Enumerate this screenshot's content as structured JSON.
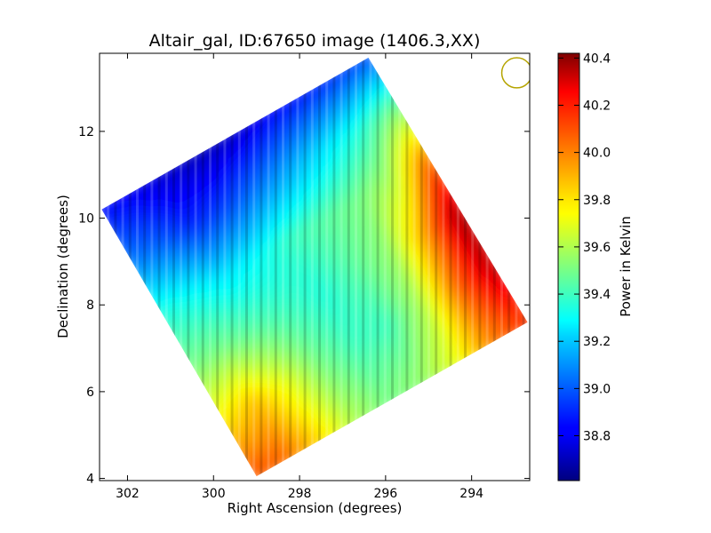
{
  "chart_data": {
    "type": "heatmap",
    "title": "Altair_gal, ID:67650 image (1406.3,XX)",
    "xlabel": "Right Ascension (degrees)",
    "ylabel": "Declination (degrees)",
    "colorbar_label": "Power in Kelvin",
    "xlim": [
      302.65,
      292.65
    ],
    "ylim": [
      3.95,
      13.8
    ],
    "x_ticks": [
      302,
      300,
      298,
      296,
      294
    ],
    "x_tick_labels": [
      "302",
      "300",
      "298",
      "296",
      "294"
    ],
    "y_ticks": [
      4,
      6,
      8,
      10,
      12
    ],
    "y_tick_labels": [
      "4",
      "6",
      "8",
      "10",
      "12"
    ],
    "color_range": [
      38.61,
      40.42
    ],
    "colorbar_ticks": [
      38.8,
      39.0,
      39.2,
      39.4,
      39.6,
      39.8,
      40.0,
      40.2,
      40.4
    ],
    "colorbar_tick_labels": [
      "38.8",
      "39.0",
      "39.2",
      "39.4",
      "39.6",
      "39.8",
      "40.0",
      "40.2",
      "40.4"
    ],
    "colormap": "jet",
    "grid": false,
    "footprint_corners": [
      [
        296.4,
        13.7
      ],
      [
        292.7,
        7.6
      ],
      [
        299.0,
        4.05
      ],
      [
        302.6,
        10.2
      ]
    ],
    "footprint_values_grid": {
      "note_u_from": "lower-left edge (302.6,10.2)->(299.0,4.05)",
      "rows_v_top_to_bottom": [
        [
          38.85,
          38.8,
          38.75,
          38.7,
          38.72,
          38.8,
          38.85,
          38.9,
          38.95
        ],
        [
          39.05,
          39.0,
          38.9,
          38.95,
          39.05,
          39.15,
          39.25,
          39.35,
          39.5
        ],
        [
          39.35,
          39.3,
          39.25,
          39.3,
          39.4,
          39.45,
          39.5,
          39.6,
          40.0
        ],
        [
          39.5,
          39.5,
          39.45,
          39.4,
          39.35,
          39.45,
          39.55,
          39.9,
          40.35
        ],
        [
          39.75,
          39.85,
          39.7,
          39.5,
          39.4,
          39.4,
          39.6,
          40.0,
          40.3
        ],
        [
          40.05,
          40.0,
          39.8,
          39.6,
          39.5,
          39.55,
          39.7,
          39.95,
          40.1
        ]
      ]
    },
    "beam_marker": {
      "ra": 292.95,
      "dec": 13.35,
      "radius_deg": 0.35,
      "color": "#b5a400"
    }
  }
}
